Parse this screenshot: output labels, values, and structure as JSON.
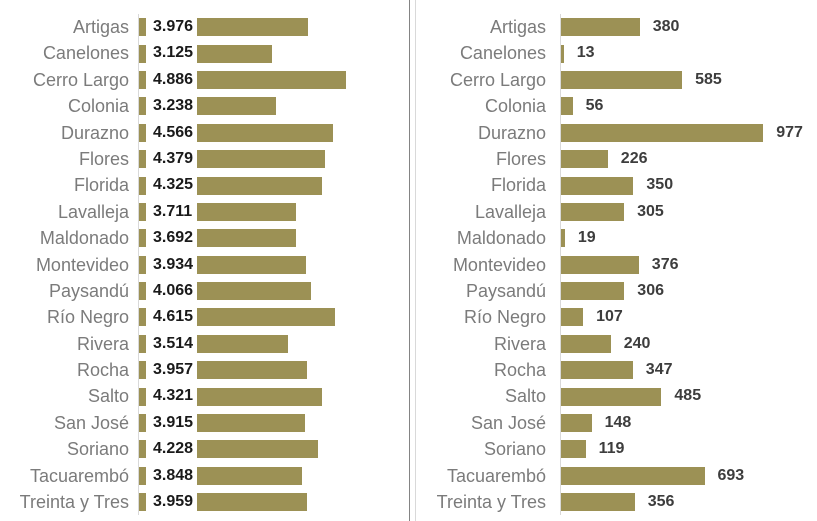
{
  "colors": {
    "bar": "#9c9155",
    "category_label": "#7b7b7b",
    "value_label_left": "#1a1a1a",
    "value_label_right": "#3d3d3d",
    "axis_line": "#d9d9d9",
    "divider_dark": "#848484",
    "divider_light": "#d9d9d9",
    "background": "#ffffff"
  },
  "chart_data": [
    {
      "id": "left",
      "type": "bar",
      "orientation": "horizontal",
      "title": "",
      "xlabel": "",
      "ylabel": "",
      "grid": false,
      "legend": false,
      "label_position": "inside-base",
      "xlim": [
        0,
        5
      ],
      "categories": [
        "Artigas",
        "Canelones",
        "Cerro Largo",
        "Colonia",
        "Durazno",
        "Flores",
        "Florida",
        "Lavalleja",
        "Maldonado",
        "Montevideo",
        "Paysandú",
        "Río Negro",
        "Rivera",
        "Rocha",
        "Salto",
        "San José",
        "Soriano",
        "Tacuarembó",
        "Treinta y Tres"
      ],
      "values": [
        3.976,
        3.125,
        4.886,
        3.238,
        4.566,
        4.379,
        4.325,
        3.711,
        3.692,
        3.934,
        4.066,
        4.615,
        3.514,
        3.957,
        4.321,
        3.915,
        4.228,
        3.848,
        3.959
      ],
      "value_labels": [
        "3.976",
        "3.125",
        "4.886",
        "3.238",
        "4.566",
        "4.379",
        "4.325",
        "3.711",
        "3.692",
        "3.934",
        "4.066",
        "4.615",
        "3.514",
        "3.957",
        "4.321",
        "3.915",
        "4.228",
        "3.848",
        "3.959"
      ]
    },
    {
      "id": "right",
      "type": "bar",
      "orientation": "horizontal",
      "title": "",
      "xlabel": "",
      "ylabel": "",
      "grid": false,
      "legend": false,
      "label_position": "outside-end",
      "xlim": [
        0,
        1000
      ],
      "categories": [
        "Artigas",
        "Canelones",
        "Cerro Largo",
        "Colonia",
        "Durazno",
        "Flores",
        "Florida",
        "Lavalleja",
        "Maldonado",
        "Montevideo",
        "Paysandú",
        "Río Negro",
        "Rivera",
        "Rocha",
        "Salto",
        "San José",
        "Soriano",
        "Tacuarembó",
        "Treinta y Tres"
      ],
      "values": [
        380,
        13,
        585,
        56,
        977,
        226,
        350,
        305,
        19,
        376,
        306,
        107,
        240,
        347,
        485,
        148,
        119,
        693,
        356
      ],
      "value_labels": [
        "380",
        "13",
        "585",
        "56",
        "977",
        "226",
        "350",
        "305",
        "19",
        "376",
        "306",
        "107",
        "240",
        "347",
        "485",
        "148",
        "119",
        "693",
        "356"
      ]
    }
  ]
}
